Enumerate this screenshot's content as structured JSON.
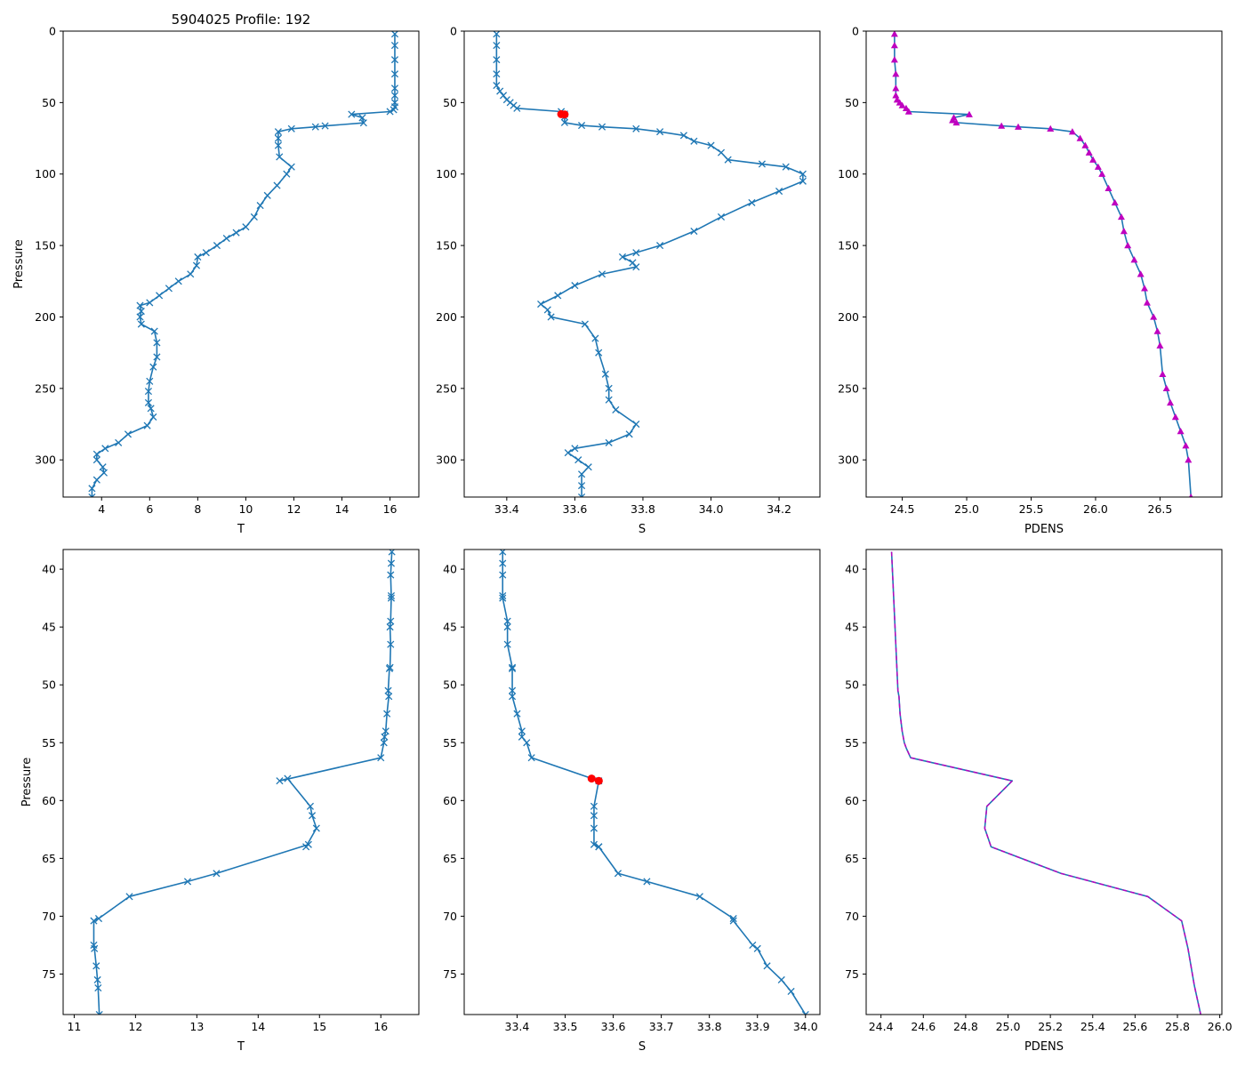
{
  "figure_title": "5904025 Profile: 192",
  "colors": {
    "line": "#1f77b4",
    "magenta": "#bf00bf",
    "flag": "#ff0000",
    "axis": "#000000"
  },
  "chart_data": [
    {
      "id": "top-t",
      "type": "line",
      "xlabel": "T",
      "ylabel": "Pressure",
      "xlim": [
        2.4,
        17.2
      ],
      "ylim": [
        326,
        0
      ],
      "xticks": [
        4,
        6,
        8,
        10,
        12,
        14,
        16
      ],
      "xticklabels": [
        "4",
        "6",
        "8",
        "10",
        "12",
        "14",
        "16"
      ],
      "yticks": [
        0,
        50,
        100,
        150,
        200,
        250,
        300
      ],
      "yticklabels": [
        "0",
        "50",
        "100",
        "150",
        "200",
        "250",
        "300"
      ],
      "series": [
        {
          "name": "T",
          "marker": "x",
          "color": "#1f77b4",
          "x": [
            16.2,
            16.2,
            16.2,
            16.2,
            16.2,
            16.2,
            16.2,
            16.2,
            16.15,
            16.0,
            14.4,
            14.85,
            14.9,
            13.3,
            12.9,
            11.9,
            11.35,
            11.35,
            11.35,
            11.4,
            11.9,
            11.7,
            11.3,
            10.9,
            10.6,
            10.35,
            10.0,
            9.6,
            9.2,
            8.8,
            8.35,
            8.0,
            7.95,
            7.7,
            7.2,
            6.8,
            6.4,
            6.0,
            5.6,
            5.65,
            5.6,
            5.65,
            6.2,
            6.3,
            6.3,
            6.15,
            6.0,
            5.95,
            5.95,
            6.05,
            6.15,
            5.9,
            5.1,
            4.7,
            4.15,
            3.8,
            3.8,
            4.05,
            4.1,
            3.8,
            3.6,
            3.6
          ],
          "y": [
            2,
            10,
            20,
            30,
            40,
            45,
            50,
            53,
            55,
            56.3,
            58.2,
            60.6,
            64.2,
            66.3,
            67,
            68.3,
            70.4,
            75,
            80,
            88,
            95,
            100,
            108,
            115,
            122,
            130,
            137,
            141,
            145,
            150,
            155,
            158,
            164,
            170,
            175,
            180,
            185,
            190,
            192,
            196,
            200,
            205,
            210,
            218,
            228,
            235,
            245,
            252,
            260,
            264,
            270,
            276,
            282,
            288,
            292,
            296,
            300,
            305,
            309,
            314,
            320,
            326
          ]
        }
      ]
    },
    {
      "id": "top-s",
      "type": "line",
      "xlabel": "S",
      "ylabel": "",
      "xlim": [
        33.275,
        34.32
      ],
      "ylim": [
        326,
        0
      ],
      "xticks": [
        33.4,
        33.6,
        33.8,
        34.0,
        34.2
      ],
      "xticklabels": [
        "33.4",
        "33.6",
        "33.8",
        "34.0",
        "34.2"
      ],
      "yticks": [
        0,
        50,
        100,
        150,
        200,
        250,
        300
      ],
      "yticklabels": [
        "0",
        "50",
        "100",
        "150",
        "200",
        "250",
        "300"
      ],
      "series": [
        {
          "name": "S",
          "marker": "x",
          "color": "#1f77b4",
          "x": [
            33.37,
            33.37,
            33.37,
            33.37,
            33.37,
            33.38,
            33.39,
            33.4,
            33.41,
            33.42,
            33.43,
            33.56,
            33.57,
            33.57,
            33.57,
            33.62,
            33.68,
            33.78,
            33.85,
            33.92,
            33.95,
            34.0,
            34.03,
            34.05,
            34.15,
            34.22,
            34.27,
            34.27,
            34.2,
            34.12,
            34.03,
            33.95,
            33.85,
            33.78,
            33.74,
            33.77,
            33.78,
            33.68,
            33.6,
            33.55,
            33.5,
            33.52,
            33.53,
            33.63,
            33.66,
            33.67,
            33.69,
            33.7,
            33.7,
            33.72,
            33.78,
            33.76,
            33.7,
            33.6,
            33.58,
            33.61,
            33.64,
            33.62,
            33.62,
            33.62
          ],
          "y": [
            2,
            10,
            20,
            30,
            38,
            42,
            45,
            48,
            50,
            52,
            54,
            56.3,
            58,
            60,
            64,
            66,
            67,
            68.3,
            70.4,
            73,
            77,
            80,
            85,
            90,
            93,
            95,
            100,
            105,
            112,
            120,
            130,
            140,
            150,
            155,
            158,
            162,
            165,
            170,
            178,
            185,
            191,
            195,
            200,
            205,
            215,
            225,
            240,
            250,
            258,
            265,
            275,
            282,
            288,
            292,
            295,
            300,
            305,
            310,
            318,
            326
          ]
        },
        {
          "name": "flagged",
          "marker": "o",
          "color": "#ff0000",
          "x": [
            33.56,
            33.57
          ],
          "y": [
            58.1,
            58.3
          ]
        }
      ]
    },
    {
      "id": "top-pdens",
      "type": "line",
      "xlabel": "PDENS",
      "ylabel": "",
      "xlim": [
        24.22,
        26.98
      ],
      "ylim": [
        326,
        0
      ],
      "xticks": [
        24.5,
        25.0,
        25.5,
        26.0,
        26.5
      ],
      "xticklabels": [
        "24.5",
        "25.0",
        "25.5",
        "26.0",
        "26.5"
      ],
      "yticks": [
        0,
        50,
        100,
        150,
        200,
        250,
        300
      ],
      "yticklabels": [
        "0",
        "50",
        "100",
        "150",
        "200",
        "250",
        "300"
      ],
      "series": [
        {
          "name": "PDENS",
          "marker": "^",
          "color": "#1f77b4",
          "marker_color": "#bf00bf",
          "x": [
            24.44,
            24.44,
            24.44,
            24.45,
            24.45,
            24.45,
            24.46,
            24.48,
            24.5,
            24.53,
            24.55,
            25.02,
            24.9,
            24.89,
            24.92,
            25.27,
            25.4,
            25.65,
            25.82,
            25.88,
            25.92,
            25.95,
            25.98,
            26.02,
            26.05,
            26.1,
            26.15,
            26.2,
            26.22,
            26.25,
            26.3,
            26.35,
            26.38,
            26.4,
            26.45,
            26.48,
            26.5,
            26.52,
            26.55,
            26.58,
            26.62,
            26.66,
            26.7,
            26.72,
            26.74
          ],
          "y": [
            2,
            10,
            20,
            30,
            40,
            45,
            48,
            50,
            52,
            54,
            56.3,
            58.3,
            60.5,
            62.4,
            64,
            66.3,
            67,
            68.3,
            70.4,
            75,
            80,
            85,
            90,
            95,
            100,
            110,
            120,
            130,
            140,
            150,
            160,
            170,
            180,
            190,
            200,
            210,
            220,
            240,
            250,
            260,
            270,
            280,
            290,
            300,
            326
          ]
        }
      ]
    },
    {
      "id": "bottom-t",
      "type": "line",
      "xlabel": "T",
      "ylabel": "Pressure",
      "xlim": [
        10.82,
        16.62
      ],
      "ylim": [
        78.5,
        38.3
      ],
      "xticks": [
        11,
        12,
        13,
        14,
        15,
        16
      ],
      "xticklabels": [
        "11",
        "12",
        "13",
        "14",
        "15",
        "16"
      ],
      "yticks": [
        40,
        45,
        50,
        55,
        60,
        65,
        70,
        75
      ],
      "yticklabels": [
        "40",
        "45",
        "50",
        "55",
        "60",
        "65",
        "70",
        "75"
      ],
      "series": [
        {
          "name": "T",
          "marker": "x",
          "color": "#1f77b4",
          "x": [
            16.18,
            16.17,
            16.16,
            16.17,
            16.17,
            16.16,
            16.15,
            16.16,
            16.15,
            16.14,
            16.12,
            16.13,
            16.1,
            16.08,
            16.06,
            16.05,
            16.0,
            14.35,
            14.48,
            14.85,
            14.88,
            14.95,
            14.78,
            14.82,
            13.32,
            12.85,
            11.9,
            11.4,
            11.32,
            11.32,
            11.33,
            11.36,
            11.38,
            11.39,
            11.41
          ],
          "y": [
            38.5,
            39.5,
            40.5,
            42.3,
            42.5,
            44.5,
            45.0,
            46.5,
            48.5,
            48.6,
            50.5,
            51.0,
            52.5,
            54.0,
            54.5,
            55.0,
            56.3,
            58.3,
            58.1,
            60.5,
            61.3,
            62.4,
            64.0,
            63.8,
            66.3,
            67.0,
            68.3,
            70.2,
            70.4,
            72.5,
            72.8,
            74.3,
            75.5,
            76.2,
            78.5
          ]
        }
      ]
    },
    {
      "id": "bottom-s",
      "type": "line",
      "xlabel": "S",
      "ylabel": "",
      "xlim": [
        33.29,
        34.03
      ],
      "ylim": [
        78.5,
        38.3
      ],
      "xticks": [
        33.4,
        33.5,
        33.6,
        33.7,
        33.8,
        33.9,
        34.0
      ],
      "xticklabels": [
        "33.4",
        "33.5",
        "33.6",
        "33.7",
        "33.8",
        "33.9",
        "34.0"
      ],
      "yticks": [
        40,
        45,
        50,
        55,
        60,
        65,
        70,
        75
      ],
      "yticklabels": [
        "40",
        "45",
        "50",
        "55",
        "60",
        "65",
        "70",
        "75"
      ],
      "series": [
        {
          "name": "S",
          "marker": "x",
          "color": "#1f77b4",
          "x": [
            33.37,
            33.37,
            33.37,
            33.37,
            33.37,
            33.38,
            33.38,
            33.38,
            33.39,
            33.39,
            33.39,
            33.39,
            33.4,
            33.41,
            33.41,
            33.42,
            33.43,
            33.57,
            33.56,
            33.56,
            33.56,
            33.56,
            33.57,
            33.57,
            33.61,
            33.67,
            33.78,
            33.85,
            33.85,
            33.89,
            33.9,
            33.92,
            33.95,
            33.97,
            34.0
          ],
          "y": [
            38.5,
            39.5,
            40.5,
            42.3,
            42.5,
            44.5,
            45.0,
            46.5,
            48.5,
            48.6,
            50.5,
            51.0,
            52.5,
            54.0,
            54.5,
            55.0,
            56.3,
            58.3,
            60.5,
            61.3,
            62.4,
            63.8,
            64.0,
            64.0,
            66.3,
            67.0,
            68.3,
            70.2,
            70.4,
            72.5,
            72.8,
            74.3,
            75.5,
            76.5,
            78.5
          ]
        },
        {
          "name": "flagged",
          "marker": "o",
          "color": "#ff0000",
          "x": [
            33.555,
            33.57
          ],
          "y": [
            58.1,
            58.3
          ]
        }
      ]
    },
    {
      "id": "bottom-pdens",
      "type": "line",
      "xlabel": "PDENS",
      "ylabel": "",
      "xlim": [
        24.33,
        26.01
      ],
      "ylim": [
        78.5,
        38.3
      ],
      "xticks": [
        24.4,
        24.6,
        24.8,
        25.0,
        25.2,
        25.4,
        25.6,
        25.8,
        26.0
      ],
      "xticklabels": [
        "24.4",
        "24.6",
        "24.8",
        "25.0",
        "25.2",
        "25.4",
        "25.6",
        "25.8",
        "26.0"
      ],
      "yticks": [
        40,
        45,
        50,
        55,
        60,
        65,
        70,
        75
      ],
      "yticklabels": [
        "40",
        "45",
        "50",
        "55",
        "60",
        "65",
        "70",
        "75"
      ],
      "series": [
        {
          "name": "PDENS",
          "marker": "",
          "color": "#1f77b4",
          "overlay_color": "#bf00bf",
          "overlay_dash": true,
          "x": [
            24.45,
            24.455,
            24.46,
            24.465,
            24.47,
            24.475,
            24.48,
            24.485,
            24.49,
            24.5,
            24.51,
            24.52,
            24.54,
            25.02,
            24.9,
            24.89,
            24.92,
            25.25,
            25.66,
            25.82,
            25.85,
            25.88,
            25.91
          ],
          "y": [
            38.5,
            40.5,
            42.5,
            44.5,
            46.5,
            48.5,
            50.5,
            51.0,
            52.5,
            54.0,
            55.0,
            55.5,
            56.3,
            58.3,
            60.5,
            62.4,
            64.0,
            66.3,
            68.3,
            70.4,
            72.8,
            76.0,
            78.5
          ]
        }
      ]
    }
  ]
}
